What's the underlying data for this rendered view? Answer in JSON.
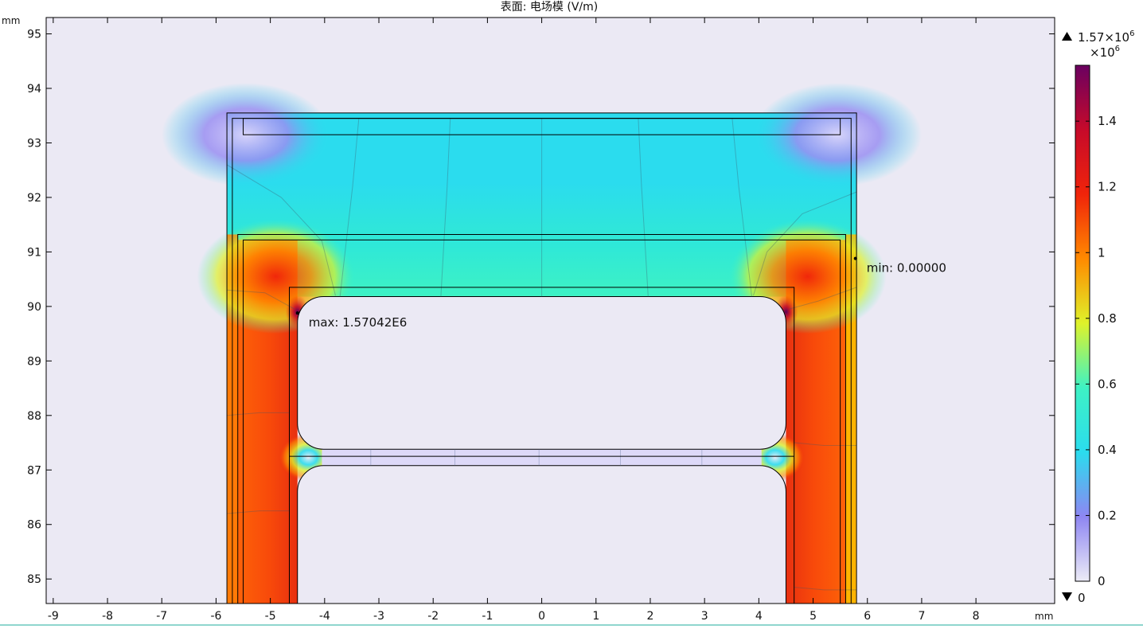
{
  "title": "表面: 电场模 (V/m)",
  "colors": {
    "plot_background": "#ebe9f4",
    "frame": "#000000",
    "bottom_accent": "#8fd6ce"
  },
  "chart_data": {
    "type": "heatmap",
    "title": "表面: 电场模 (V/m)",
    "xlabel": "mm",
    "ylabel": "mm",
    "xlim": [
      -9.13,
      9.45
    ],
    "ylim": [
      84.55,
      95.3
    ],
    "xticks": [
      -9,
      -8,
      -7,
      -6,
      -5,
      -4,
      -3,
      -2,
      -1,
      0,
      1,
      2,
      3,
      4,
      5,
      6,
      7,
      8
    ],
    "yticks": [
      85,
      86,
      87,
      88,
      89,
      90,
      91,
      92,
      93,
      94,
      95
    ],
    "colorbar": {
      "label": "×10",
      "label_exp": "6",
      "range": [
        0,
        1.57
      ],
      "ticks": [
        0,
        0.2,
        0.4,
        0.6,
        0.8,
        1,
        1.2,
        1.4
      ],
      "max_text": "1.57×10",
      "max_exp": "6",
      "min_text": "0",
      "colormap": "Rainbow (violet–blue–cyan–green–yellow–red–dark purple)",
      "stops": [
        "#ecebf6",
        "#8e86f2",
        "#2bdcee",
        "#3ef2c4",
        "#dff22a",
        "#ff8a00",
        "#f0240a",
        "#c60a2a",
        "#6a0060"
      ]
    },
    "annotations": [
      {
        "name": "max",
        "text": "max: 1.57042E6",
        "x": -4.5,
        "y": 89.88
      },
      {
        "name": "min",
        "text": "min: 0.00000",
        "x": 5.78,
        "y": 90.88
      }
    ],
    "field_max": 1570420,
    "field_min": 0,
    "geometry_boundaries_mm": {
      "outer_box": {
        "x": [
          -5.8,
          5.8
        ],
        "y": [
          84.5,
          93.55
        ]
      },
      "inner_box": {
        "x": [
          -5.7,
          5.7
        ],
        "y": [
          84.5,
          93.45
        ]
      },
      "top_electrode": {
        "x": [
          -5.5,
          5.5
        ],
        "y": [
          93.15,
          93.45
        ]
      },
      "middle_box_outer": {
        "x": [
          -5.6,
          5.6
        ],
        "y": [
          84.5,
          91.32
        ]
      },
      "middle_box_inner": {
        "x": [
          -5.5,
          5.5
        ],
        "y": [
          84.5,
          91.22
        ]
      },
      "inner_conductor_region": {
        "x": [
          -4.65,
          4.65
        ],
        "y": [
          84.5,
          90.35
        ]
      },
      "upper_hole": {
        "x": [
          -4.5,
          4.5
        ],
        "y": [
          87.38,
          90.18
        ],
        "corner_radius": 0.48
      },
      "lower_hole": {
        "x": [
          -4.5,
          4.5
        ],
        "y": [
          84.5,
          87.08
        ],
        "corner_radius": 0.48
      },
      "gap_line_y": [
        87.25,
        87.08
      ]
    }
  }
}
